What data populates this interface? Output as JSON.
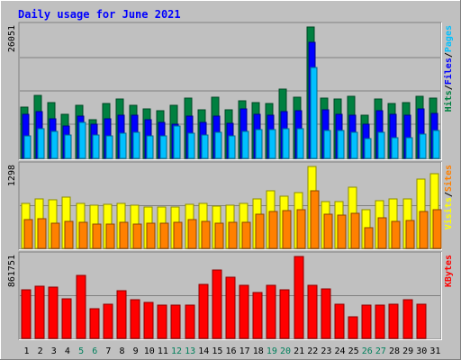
{
  "title": "Daily usage for June 2021",
  "colors": {
    "background": "#c0c0c0",
    "title": "#0000ff",
    "hits": "#008040",
    "files": "#0000ff",
    "pages": "#00c0ff",
    "visits": "#ffff00",
    "sites": "#ff8000",
    "kbytes": "#ff0000",
    "weekend_label": "#00805c",
    "weekday_label": "#000080"
  },
  "chart_data": [
    {
      "type": "bar",
      "name": "hits-files-pages",
      "categories": [
        "1",
        "2",
        "3",
        "4",
        "5",
        "6",
        "7",
        "8",
        "9",
        "10",
        "11",
        "12",
        "13",
        "14",
        "15",
        "16",
        "17",
        "18",
        "19",
        "20",
        "21",
        "22",
        "23",
        "24",
        "25",
        "26",
        "27",
        "28",
        "29",
        "30",
        "31"
      ],
      "weekend_days": [
        "5",
        "6",
        "12",
        "13",
        "19",
        "20",
        "26",
        "27"
      ],
      "ymax_label": "26051",
      "ylim": [
        0,
        26051
      ],
      "legend": [
        "Pages",
        "/",
        "Files",
        "/",
        "Hits"
      ],
      "series": [
        {
          "name": "Hits",
          "values": [
            10200,
            12500,
            11000,
            8700,
            10500,
            7700,
            10900,
            11700,
            10500,
            9800,
            9500,
            10500,
            12000,
            9700,
            12100,
            9700,
            11400,
            11100,
            10800,
            13800,
            12100,
            26051,
            12000,
            11700,
            12300,
            8600,
            11800,
            10900,
            11000,
            12400,
            12000
          ]
        },
        {
          "name": "Files",
          "values": [
            8700,
            9200,
            7900,
            6400,
            8300,
            6800,
            7800,
            8600,
            8500,
            7700,
            7100,
            6700,
            8300,
            7200,
            8400,
            6900,
            9800,
            8800,
            8500,
            9200,
            9400,
            23000,
            9600,
            8800,
            8500,
            6800,
            9500,
            8700,
            8600,
            9800,
            9000
          ]
        },
        {
          "name": "Pages",
          "values": [
            4400,
            5900,
            5400,
            4700,
            7200,
            4600,
            4500,
            5000,
            5100,
            4400,
            4500,
            6500,
            5000,
            4700,
            5200,
            4400,
            5300,
            5700,
            5700,
            5900,
            5900,
            18000,
            5600,
            5600,
            5200,
            3900,
            5200,
            4100,
            4100,
            4900,
            5600
          ]
        }
      ]
    },
    {
      "type": "bar",
      "name": "visits-sites",
      "categories": [
        "1",
        "2",
        "3",
        "4",
        "5",
        "6",
        "7",
        "8",
        "9",
        "10",
        "11",
        "12",
        "13",
        "14",
        "15",
        "16",
        "17",
        "18",
        "19",
        "20",
        "21",
        "22",
        "23",
        "24",
        "25",
        "26",
        "27",
        "28",
        "29",
        "30",
        "31"
      ],
      "ymax_label": "1298",
      "ylim": [
        0,
        1298
      ],
      "legend": [
        "Sites",
        "/",
        "Visits"
      ],
      "series": [
        {
          "name": "Visits",
          "values": [
            720,
            780,
            770,
            820,
            720,
            680,
            700,
            710,
            680,
            660,
            660,
            650,
            700,
            720,
            670,
            690,
            710,
            780,
            920,
            830,
            890,
            1298,
            740,
            740,
            970,
            610,
            760,
            780,
            780,
            1100,
            1190
          ]
        },
        {
          "name": "Sites",
          "values": [
            460,
            470,
            400,
            430,
            410,
            380,
            390,
            410,
            390,
            400,
            400,
            410,
            450,
            430,
            400,
            410,
            420,
            540,
            590,
            600,
            620,
            920,
            540,
            530,
            550,
            330,
            480,
            430,
            440,
            590,
            610
          ]
        }
      ]
    },
    {
      "type": "bar",
      "name": "kbytes",
      "categories": [
        "1",
        "2",
        "3",
        "4",
        "5",
        "6",
        "7",
        "8",
        "9",
        "10",
        "11",
        "12",
        "13",
        "14",
        "15",
        "16",
        "17",
        "18",
        "19",
        "20",
        "21",
        "22",
        "23",
        "24",
        "25",
        "26",
        "27",
        "28",
        "29",
        "30",
        "31"
      ],
      "ymax_label": "861751",
      "ylim": [
        0,
        861751
      ],
      "legend": [
        "KBytes"
      ],
      "series": [
        {
          "name": "KBytes",
          "values": [
            510000,
            550000,
            540000,
            420000,
            660000,
            310000,
            360000,
            500000,
            410000,
            380000,
            350000,
            350000,
            350000,
            570000,
            720000,
            640000,
            560000,
            480000,
            560000,
            510000,
            861751,
            560000,
            520000,
            360000,
            230000,
            350000,
            350000,
            360000,
            410000,
            360000,
            0
          ]
        }
      ]
    }
  ]
}
